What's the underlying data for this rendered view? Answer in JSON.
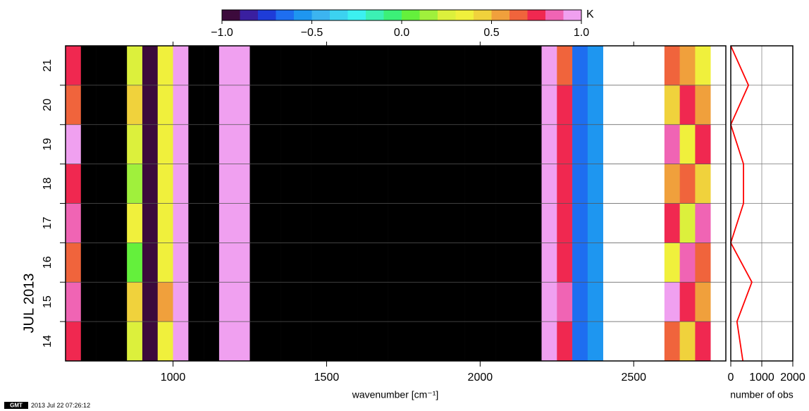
{
  "chart_data": [
    {
      "type": "heatmap",
      "x_label": "wavenumber [cm⁻¹]",
      "y_label": "JUL 2013",
      "xlim": [
        650,
        2800
      ],
      "xticks": [
        1000,
        1500,
        2000,
        2500
      ],
      "ylim": [
        14,
        22
      ],
      "yticks": [
        15,
        16,
        17,
        18,
        19,
        20,
        21
      ],
      "day_labels": [
        "14",
        "15",
        "16",
        "17",
        "18",
        "19",
        "20",
        "21"
      ],
      "x_edges": [
        650,
        700,
        750,
        800,
        850,
        900,
        950,
        1000,
        1050,
        1100,
        1150,
        1200,
        1250,
        1300,
        1350,
        1400,
        1450,
        1500,
        1550,
        1600,
        1650,
        1700,
        1750,
        1800,
        1850,
        1900,
        1950,
        2000,
        2050,
        2100,
        2150,
        2200,
        2250,
        2300,
        2350,
        2400,
        2450,
        2500,
        2550,
        2600,
        2650,
        2700,
        2750
      ],
      "z": [
        [
          0.7,
          -1.2,
          -1.3,
          -1.2,
          0.2,
          -0.9,
          0.3,
          0.9,
          -1.3,
          -1.2,
          0.9,
          0.95,
          -1.2,
          -1.5,
          -1.5,
          -1.4,
          -1.5,
          -1.5,
          -1.5,
          -1.3,
          -1.5,
          -1.5,
          -1.4,
          -1.5,
          -1.5,
          -1.6,
          -1.6,
          -1.6,
          -1.3,
          -1.1,
          -1.2,
          0.9,
          0.7,
          -0.7,
          -0.6,
          null,
          null,
          null,
          null,
          0.6,
          0.4,
          0.7
        ],
        [
          0.8,
          -1.2,
          -1.3,
          -1.2,
          0.4,
          -0.9,
          0.5,
          0.9,
          -1.3,
          -1.2,
          0.9,
          0.95,
          -1.2,
          -1.5,
          -1.5,
          -1.4,
          -1.5,
          -1.5,
          -1.5,
          -1.3,
          -1.5,
          -1.5,
          -1.4,
          -1.5,
          -1.5,
          -1.6,
          -1.6,
          -1.6,
          -1.3,
          -1.1,
          -1.2,
          0.9,
          0.8,
          -0.7,
          -0.6,
          null,
          null,
          null,
          null,
          0.9,
          0.7,
          0.5
        ],
        [
          0.6,
          -1.2,
          -1.3,
          -1.2,
          0.0,
          -0.9,
          0.3,
          0.9,
          -1.3,
          -1.2,
          0.9,
          0.95,
          -1.2,
          -1.5,
          -1.5,
          -1.4,
          -1.5,
          -1.5,
          -1.5,
          -1.3,
          -1.5,
          -1.5,
          -1.4,
          -1.5,
          -1.5,
          -1.6,
          -1.6,
          -1.6,
          -1.3,
          -1.1,
          -1.2,
          0.9,
          0.7,
          -0.7,
          -0.6,
          null,
          null,
          null,
          null,
          0.3,
          0.8,
          0.6
        ],
        [
          0.8,
          -1.2,
          -1.3,
          -1.2,
          0.3,
          -0.9,
          0.3,
          0.9,
          -1.3,
          -1.2,
          0.9,
          0.95,
          -1.2,
          -1.5,
          -1.5,
          -1.4,
          -1.5,
          -1.5,
          -1.5,
          -1.3,
          -1.5,
          -1.5,
          -1.4,
          -1.5,
          -1.5,
          -1.6,
          -1.6,
          -1.6,
          -1.3,
          -1.1,
          -1.2,
          0.9,
          0.7,
          -0.7,
          -0.6,
          null,
          null,
          null,
          null,
          0.7,
          0.2,
          0.8
        ],
        [
          0.7,
          -1.2,
          -1.3,
          -1.2,
          0.1,
          -0.9,
          0.3,
          0.9,
          -1.3,
          -1.2,
          0.9,
          0.95,
          -1.2,
          -1.5,
          -1.5,
          -1.4,
          -1.5,
          -1.5,
          -1.5,
          -1.3,
          -1.5,
          -1.5,
          -1.4,
          -1.5,
          -1.5,
          -1.6,
          -1.6,
          -1.6,
          -1.3,
          -1.1,
          -1.2,
          0.9,
          0.7,
          -0.7,
          -0.6,
          null,
          null,
          null,
          null,
          0.5,
          0.6,
          0.4
        ],
        [
          0.9,
          -1.2,
          -1.3,
          -1.2,
          0.2,
          -0.9,
          0.3,
          0.9,
          -1.3,
          -1.2,
          0.9,
          0.95,
          -1.2,
          -1.5,
          -1.5,
          -1.4,
          -1.5,
          -1.5,
          -1.5,
          -1.3,
          -1.5,
          -1.5,
          -1.4,
          -1.5,
          -1.5,
          -1.6,
          -1.6,
          -1.6,
          -1.3,
          -1.1,
          -1.2,
          0.9,
          0.7,
          -0.7,
          -0.6,
          null,
          null,
          null,
          null,
          0.8,
          0.3,
          0.7
        ],
        [
          0.6,
          -1.2,
          -1.3,
          -1.2,
          0.4,
          -0.9,
          0.3,
          0.9,
          -1.3,
          -1.2,
          0.9,
          0.95,
          -1.2,
          -1.5,
          -1.5,
          -1.4,
          -1.5,
          -1.5,
          -1.5,
          -1.3,
          -1.5,
          -1.5,
          -1.4,
          -1.5,
          -1.5,
          -1.6,
          -1.6,
          -1.6,
          -1.3,
          -1.1,
          -1.2,
          0.9,
          0.7,
          -0.7,
          -0.6,
          null,
          null,
          null,
          null,
          0.4,
          0.7,
          0.5
        ],
        [
          0.7,
          -1.2,
          -1.3,
          -1.2,
          0.2,
          -0.9,
          0.3,
          0.9,
          -1.3,
          -1.2,
          0.9,
          0.95,
          -1.2,
          -1.5,
          -1.5,
          -1.4,
          -1.5,
          -1.5,
          -1.5,
          -1.3,
          -1.5,
          -1.5,
          -1.4,
          -1.5,
          -1.5,
          -1.6,
          -1.6,
          -1.6,
          -1.3,
          -1.1,
          -1.2,
          0.9,
          0.6,
          -0.7,
          -0.6,
          null,
          null,
          null,
          null,
          0.6,
          0.5,
          0.3
        ]
      ],
      "colorbar": {
        "unit": "K",
        "clim": [
          -1,
          1
        ],
        "ticks": [
          {
            "value": -1,
            "label": "−1.0"
          },
          {
            "value": -0.5,
            "label": "−0.5"
          },
          {
            "value": 0,
            "label": "0.0"
          },
          {
            "value": 0.5,
            "label": "0.5"
          },
          {
            "value": 1,
            "label": "1.0"
          }
        ],
        "colors": [
          "#3c0a3c",
          "#3a1fa0",
          "#1e3cd8",
          "#1e6ef0",
          "#1e96f0",
          "#3cb4f0",
          "#3cd2f0",
          "#3cf0f0",
          "#3cf0b4",
          "#3cf078",
          "#64f03c",
          "#a0f03c",
          "#dcf03c",
          "#f0f03c",
          "#f0d23c",
          "#f0a03c",
          "#f0643c",
          "#f02850",
          "#f064b4",
          "#f0a0f0"
        ],
        "below_color": "#000000"
      },
      "grid": true
    },
    {
      "type": "line",
      "x_label": "number of obs",
      "xlim": [
        0,
        2000
      ],
      "xticks": [
        0,
        1000,
        2000
      ],
      "ylim": [
        14,
        22
      ],
      "yticks": [
        15,
        16,
        17,
        18,
        19,
        20,
        21
      ],
      "times": [
        22,
        21,
        20,
        19,
        18,
        17,
        16,
        15,
        14
      ],
      "series": [
        {
          "color": "#ff0000",
          "values": [
            0,
            570,
            0,
            410,
            410,
            0,
            680,
            200,
            390
          ]
        }
      ],
      "grid": true
    }
  ],
  "footer": {
    "logo": "GMT",
    "timestamp": "2013 Jul 22 07:26:12"
  }
}
